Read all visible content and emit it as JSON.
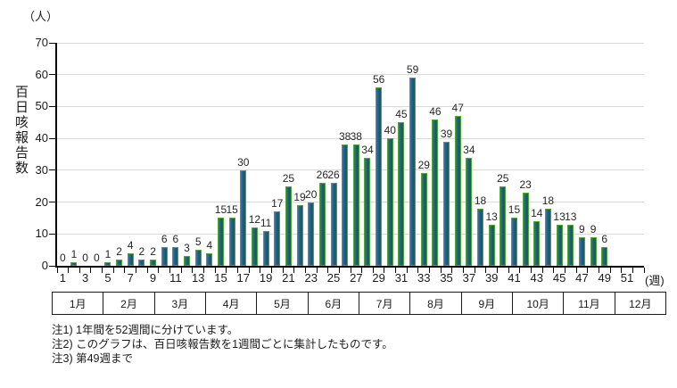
{
  "chart": {
    "unit_label": "（人）",
    "week_unit_label": "(週)",
    "y_axis_label": "百日咳報告数"
  },
  "chart_data": {
    "type": "bar",
    "title": "",
    "xlabel": "週",
    "ylabel": "百日咳報告数",
    "ylim": [
      0,
      70
    ],
    "y_ticks": [
      0,
      10,
      20,
      30,
      40,
      50,
      60,
      70
    ],
    "grid": true,
    "total_week_slots": 52,
    "weeks": [
      1,
      2,
      3,
      4,
      5,
      6,
      7,
      8,
      9,
      10,
      11,
      12,
      13,
      14,
      15,
      16,
      17,
      18,
      19,
      20,
      21,
      22,
      23,
      24,
      25,
      26,
      27,
      28,
      29,
      30,
      31,
      32,
      33,
      34,
      35,
      36,
      37,
      38,
      39,
      40,
      41,
      42,
      43,
      44,
      45,
      46,
      47,
      48,
      49
    ],
    "values": [
      0,
      1,
      0,
      0,
      1,
      2,
      4,
      2,
      2,
      6,
      6,
      3,
      5,
      4,
      15,
      15,
      30,
      12,
      11,
      17,
      25,
      19,
      20,
      26,
      26,
      38,
      38,
      34,
      56,
      40,
      45,
      59,
      29,
      46,
      39,
      47,
      34,
      18,
      13,
      25,
      15,
      23,
      14,
      18,
      13,
      13,
      9,
      9,
      6
    ],
    "x_tick_labels": [
      1,
      3,
      5,
      7,
      9,
      11,
      13,
      15,
      17,
      19,
      21,
      23,
      25,
      27,
      29,
      31,
      33,
      35,
      37,
      39,
      41,
      43,
      45,
      47,
      49,
      51
    ],
    "months": [
      "1月",
      "2月",
      "3月",
      "4月",
      "5月",
      "6月",
      "7月",
      "8月",
      "9月",
      "10月",
      "11月",
      "12月"
    ],
    "colors": {
      "bar_fill": "#1f5c60",
      "bar_fill_left": "#2e74b5",
      "bar_edge": "#4ea72e",
      "grid": "#d9d9d9",
      "axis": "#000000"
    }
  },
  "notes": [
    "注1) 1年間を52週間に分けています。",
    "注2) このグラフは、百日咳報告数を1週間ごとに集計したものです。",
    "注3) 第49週まで"
  ]
}
